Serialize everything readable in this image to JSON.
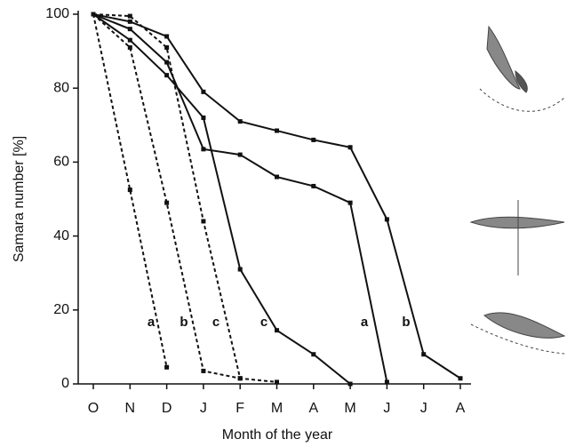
{
  "chart_data": {
    "type": "line",
    "x_label": "Month of the year",
    "y_label": "Samara number [%]",
    "categories": [
      "O",
      "N",
      "D",
      "J",
      "F",
      "M",
      "A",
      "M",
      "J",
      "J",
      "A"
    ],
    "ylim": [
      0,
      100
    ],
    "yticks": [
      0,
      20,
      40,
      60,
      80,
      100
    ],
    "grid": false,
    "series": [
      {
        "color": "#111111",
        "style": "solid",
        "values": [
          100,
          98,
          94,
          79,
          71,
          68.5,
          66,
          64,
          44.5,
          8,
          1.5
        ]
      },
      {
        "color": "#111111",
        "style": "solid",
        "values": [
          100,
          96,
          87,
          63.5,
          62,
          56,
          53.5,
          49,
          0.5,
          null,
          null
        ]
      },
      {
        "color": "#111111",
        "style": "solid",
        "values": [
          100,
          93,
          83.5,
          72,
          31,
          14.5,
          8,
          0,
          null,
          null,
          null
        ]
      },
      {
        "color": "#111111",
        "style": "dashed",
        "values": [
          100,
          52.5,
          4.5,
          null,
          null,
          null,
          null,
          null,
          null,
          null,
          null
        ]
      },
      {
        "color": "#111111",
        "style": "dashed",
        "values": [
          100,
          91,
          49,
          3.5,
          1.5,
          null,
          null,
          null,
          null,
          null,
          null
        ]
      },
      {
        "color": "#111111",
        "style": "dashed",
        "values": [
          100,
          99.5,
          91,
          44,
          1.5,
          0.5,
          null,
          null,
          null,
          null,
          null
        ]
      }
    ],
    "annotations": [
      "a",
      "b",
      "c",
      "c",
      "a",
      "b"
    ]
  }
}
